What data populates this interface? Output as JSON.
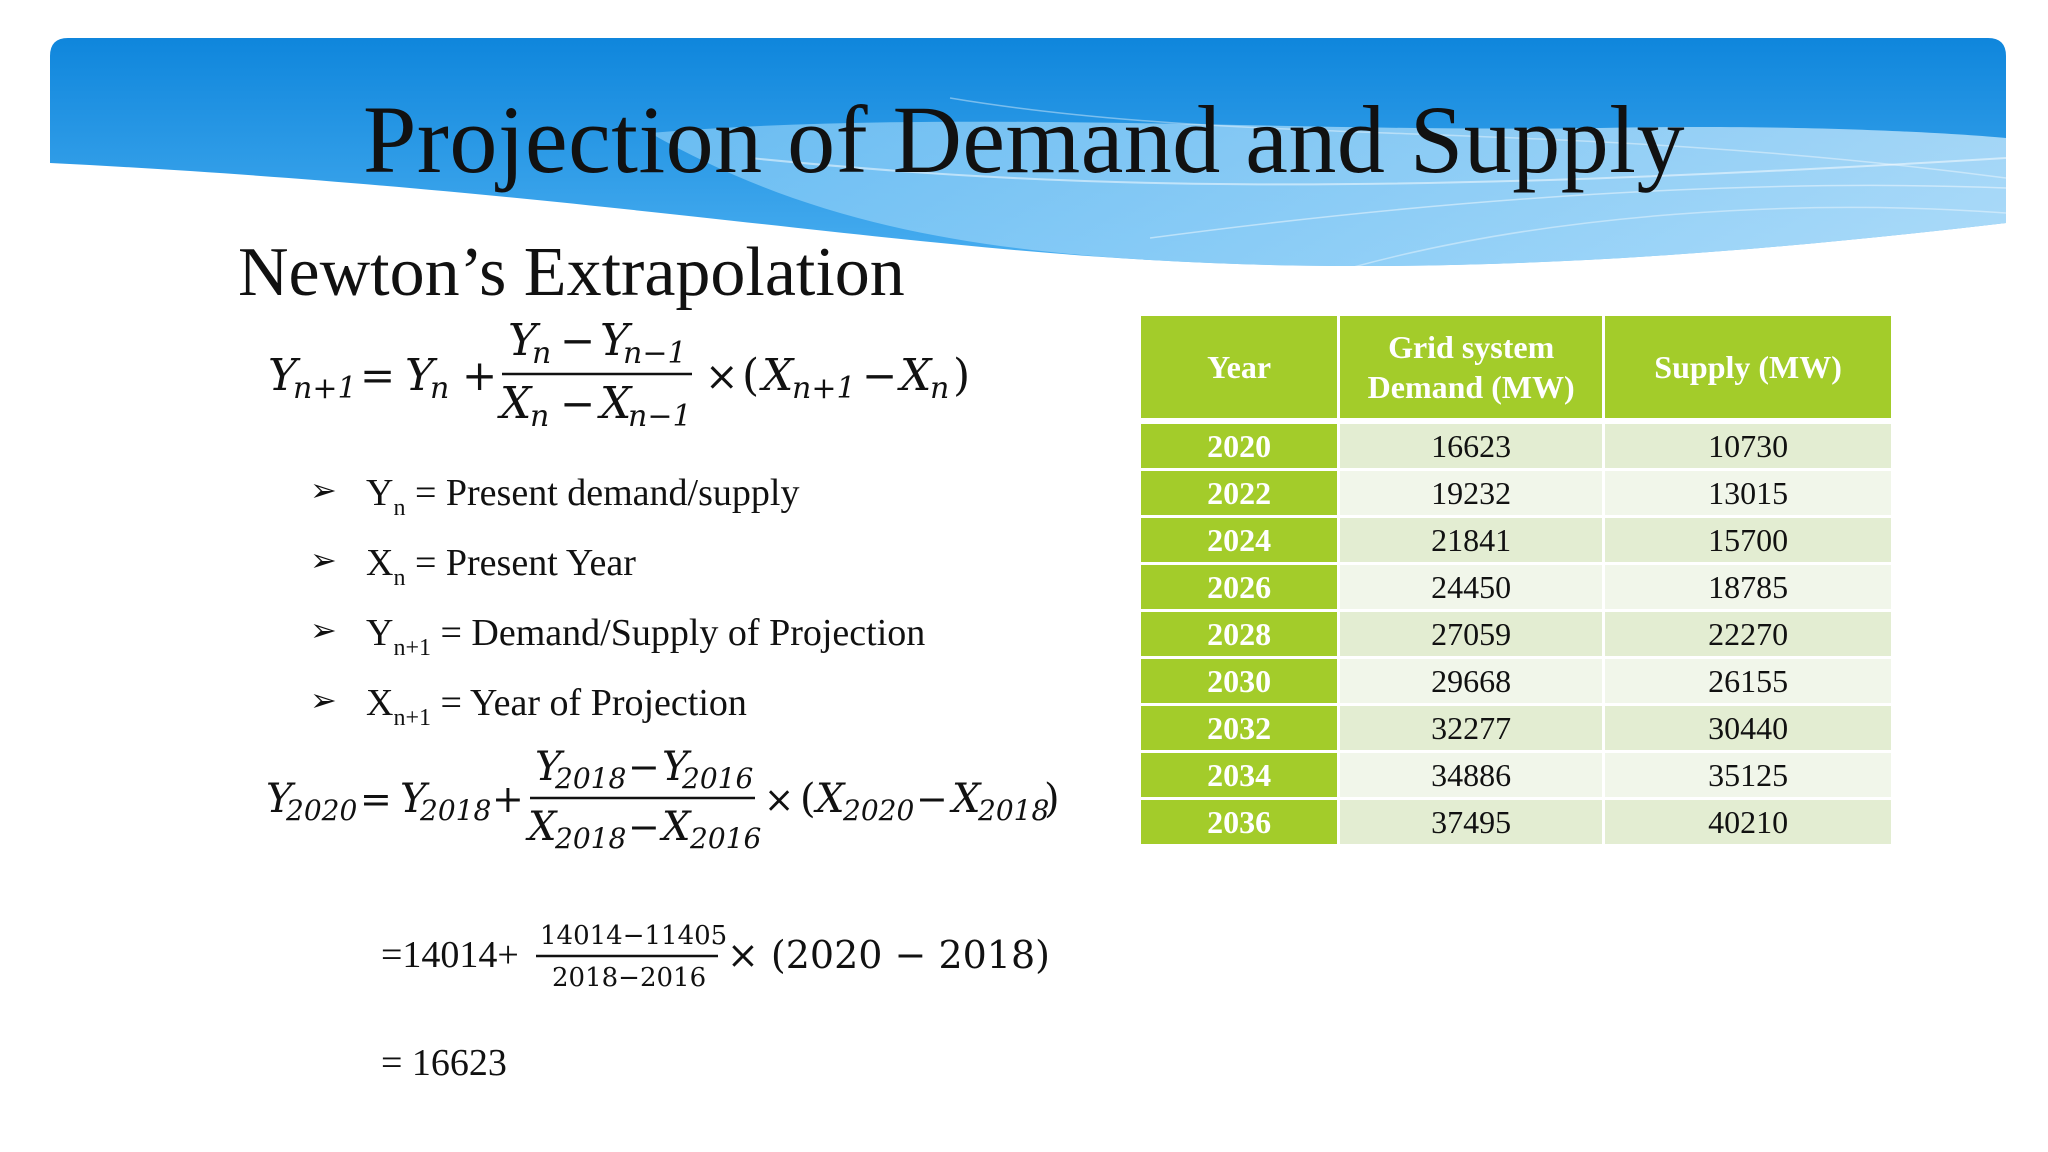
{
  "slide": {
    "title": "Projection of Demand and Supply",
    "subtitle": "Newton’s Extrapolation"
  },
  "bullets": [
    {
      "var": "Y",
      "sub": "n",
      "text": " = Present demand/supply"
    },
    {
      "var": "X",
      "sub": "n",
      "text": " =  Present Year"
    },
    {
      "var": "Y",
      "sub": "n+1",
      "text": " = Demand/Supply of Projection"
    },
    {
      "var": "X",
      "sub": "n+1",
      "text": " = Year of Projection"
    }
  ],
  "formula_general": {
    "Y": "Y",
    "X": "X",
    "n": "n",
    "n_plus_1": "n+1",
    "n_minus_1": "n−1",
    "equals": "=",
    "plus": "+",
    "minus": "−",
    "times": "×"
  },
  "formula_2020": {
    "sub_2020": "2020",
    "sub_2018": "2018",
    "sub_2016": "2016"
  },
  "calculation": {
    "prefix": "=14014+",
    "numerator": "14014−11405",
    "denominator": "2018−2016",
    "suffix": "× (2020 − 2018)",
    "result": "=  16623"
  },
  "table": {
    "headers": [
      "Year",
      "Grid system\nDemand (MW)",
      "Supply (MW)"
    ],
    "rows": [
      [
        "2020",
        "16623",
        "10730"
      ],
      [
        "2022",
        "19232",
        "13015"
      ],
      [
        "2024",
        "21841",
        "15700"
      ],
      [
        "2026",
        "24450",
        "18785"
      ],
      [
        "2028",
        "27059",
        "22270"
      ],
      [
        "2030",
        "29668",
        "26155"
      ],
      [
        "2032",
        "32277",
        "30440"
      ],
      [
        "2034",
        "34886",
        "35125"
      ],
      [
        "2036",
        "37495",
        "40210"
      ]
    ]
  },
  "colors": {
    "table_header": "#a3cc2a",
    "row_odd": "#e3edd2",
    "row_even": "#f1f6ea",
    "banner_blue": "#1a8fe0"
  }
}
